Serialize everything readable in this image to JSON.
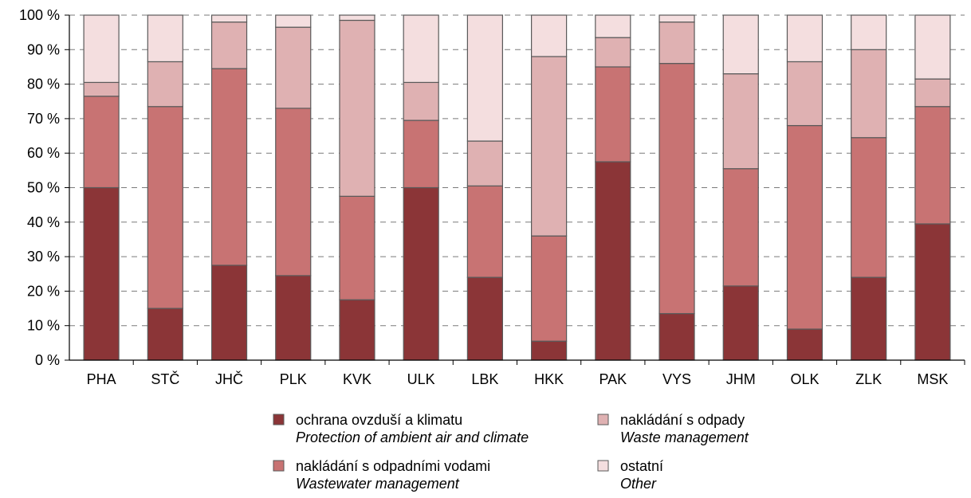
{
  "chart_data": {
    "type": "bar",
    "stacked": true,
    "normalized": true,
    "categories": [
      "PHA",
      "STČ",
      "JHČ",
      "PLK",
      "KVK",
      "ULK",
      "LBK",
      "HKK",
      "PAK",
      "VYS",
      "JHM",
      "OLK",
      "ZLK",
      "MSK"
    ],
    "series": [
      {
        "name": "ochrana ovzduší a klimatu",
        "name_en": "Protection of ambient air and climate",
        "color": "#8b3537",
        "values": [
          50,
          15,
          27.5,
          24.5,
          17.5,
          50,
          24,
          5.5,
          57.5,
          13.5,
          21.5,
          9,
          24,
          39.5
        ]
      },
      {
        "name": "nakládání s odpadními vodami",
        "name_en": "Wastewater management",
        "color": "#c87373",
        "values": [
          26.5,
          58.5,
          57,
          48.5,
          30,
          19.5,
          26.5,
          30.5,
          27.5,
          72.5,
          34,
          59,
          40.5,
          34
        ]
      },
      {
        "name": "nakládání s odpady",
        "name_en": "Waste management",
        "color": "#dfb1b2",
        "values": [
          4,
          13,
          13.5,
          23.5,
          51,
          11,
          13,
          52,
          8.5,
          12,
          27.5,
          18.5,
          25.5,
          8
        ]
      },
      {
        "name": "ostatní",
        "name_en": "Other",
        "color": "#f4dedf",
        "values": [
          19.5,
          13.5,
          2,
          3.5,
          1.5,
          19.5,
          36.5,
          12,
          6.5,
          2,
          17,
          13.5,
          10,
          18.5
        ]
      }
    ],
    "y_ticks": [
      "0 %",
      "10 %",
      "20 %",
      "30 %",
      "40 %",
      "50 %",
      "60 %",
      "70 %",
      "80 %",
      "90 %",
      "100 %"
    ],
    "ylim": [
      0,
      100
    ],
    "grid": true,
    "legend_position": "bottom"
  }
}
